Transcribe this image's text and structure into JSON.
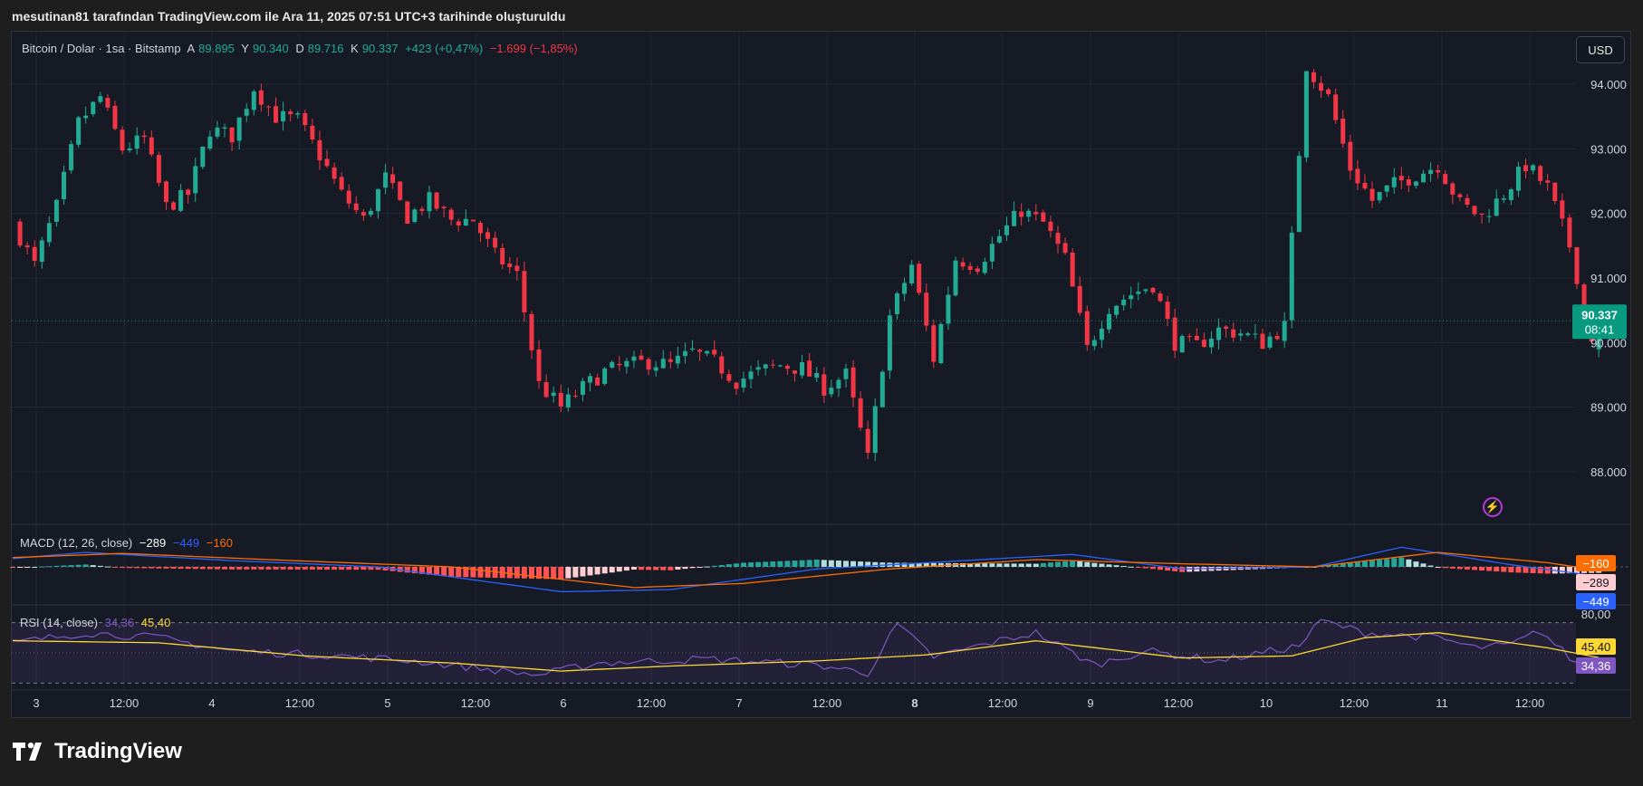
{
  "caption": "mesutinan81 tarafından TradingView.com ile Ara 11, 2025 07:51 UTC+3 tarihinde oluşturuldu",
  "legend": {
    "title": "Bitcoin / Dolar · 1sa · Bitstamp",
    "o_key": "A",
    "o_val": "89.895",
    "h_key": "Y",
    "h_val": "90.340",
    "l_key": "D",
    "l_val": "89.716",
    "c_key": "K",
    "c_val": "90.337",
    "change": "+423 (+0,47%)",
    "change2": "−1.699 (−1,85%)"
  },
  "currency_button": "USD",
  "price_label": {
    "value": "90.337",
    "countdown": "08:41"
  },
  "macd": {
    "label": "MACD (12, 26, close)",
    "hist": "−289",
    "macd": "−449",
    "signal": "−160",
    "tag_signal": "−160",
    "tag_hist": "−289",
    "tag_macd": "−449"
  },
  "rsi": {
    "label": "RSI (14, close)",
    "rsi": "34,36",
    "ma": "45,40",
    "tag_upper": "80,00",
    "tag_ma": "45,40",
    "tag_rsi": "34,36"
  },
  "logo_text": "TradingView",
  "colors": {
    "up": "#22ab94",
    "down": "#f23645",
    "macd": "#2962ff",
    "signal": "#ff6d00",
    "rsi": "#7e57c2",
    "rsi_ma": "#fdd835",
    "label_bg": "#089981"
  },
  "chart_data": {
    "type": "candlestick",
    "title": "Bitcoin / Dolar · 1sa · Bitstamp",
    "x_ticks": [
      "3",
      "12:00",
      "4",
      "12:00",
      "5",
      "12:00",
      "6",
      "12:00",
      "7",
      "12:00",
      "8",
      "12:00",
      "9",
      "12:00",
      "10",
      "12:00",
      "11",
      "12:00"
    ],
    "y_ticks": [
      "94.000",
      "93.000",
      "92.000",
      "91.000",
      "90.000",
      "89.000",
      "88.000"
    ],
    "ylim": [
      87200,
      94800
    ],
    "last_price": 90337,
    "path_points": [
      [
        0,
        91850
      ],
      [
        3,
        91200
      ],
      [
        6,
        92100
      ],
      [
        9,
        93400
      ],
      [
        12,
        93800
      ],
      [
        15,
        93000
      ],
      [
        18,
        93150
      ],
      [
        21,
        92100
      ],
      [
        24,
        92300
      ],
      [
        27,
        93300
      ],
      [
        30,
        93200
      ],
      [
        33,
        93950
      ],
      [
        36,
        93500
      ],
      [
        39,
        93450
      ],
      [
        42,
        92900
      ],
      [
        45,
        92300
      ],
      [
        48,
        91900
      ],
      [
        51,
        92550
      ],
      [
        54,
        91950
      ],
      [
        57,
        92200
      ],
      [
        60,
        91900
      ],
      [
        63,
        91900
      ],
      [
        66,
        91350
      ],
      [
        69,
        91050
      ],
      [
        72,
        89350
      ],
      [
        75,
        89000
      ],
      [
        78,
        89300
      ],
      [
        81,
        89550
      ],
      [
        84,
        89650
      ],
      [
        87,
        89700
      ],
      [
        90,
        89650
      ],
      [
        93,
        89850
      ],
      [
        96,
        89700
      ],
      [
        99,
        89400
      ],
      [
        102,
        89550
      ],
      [
        105,
        89650
      ],
      [
        108,
        89600
      ],
      [
        111,
        89300
      ],
      [
        114,
        89500
      ],
      [
        117,
        88200
      ],
      [
        120,
        90400
      ],
      [
        123,
        91200
      ],
      [
        126,
        89750
      ],
      [
        129,
        91300
      ],
      [
        132,
        91200
      ],
      [
        135,
        91650
      ],
      [
        138,
        92050
      ],
      [
        141,
        91850
      ],
      [
        144,
        91300
      ],
      [
        147,
        89900
      ],
      [
        150,
        90550
      ],
      [
        153,
        90750
      ],
      [
        156,
        90900
      ],
      [
        159,
        90000
      ],
      [
        162,
        89950
      ],
      [
        165,
        90200
      ],
      [
        168,
        90150
      ],
      [
        171,
        90000
      ],
      [
        174,
        90250
      ],
      [
        177,
        94300
      ],
      [
        180,
        93800
      ],
      [
        183,
        92700
      ],
      [
        186,
        92200
      ],
      [
        189,
        92450
      ],
      [
        192,
        92600
      ],
      [
        195,
        92750
      ],
      [
        198,
        92150
      ],
      [
        201,
        91950
      ],
      [
        204,
        92300
      ],
      [
        207,
        92750
      ],
      [
        210,
        92400
      ],
      [
        213,
        91500
      ],
      [
        216,
        90100
      ],
      [
        217,
        90337
      ]
    ],
    "macd": {
      "series": [
        {
          "name": "MACD",
          "path_points": [
            [
              0,
              400
            ],
            [
              10,
              700
            ],
            [
              30,
              300
            ],
            [
              50,
              0
            ],
            [
              75,
              -1200
            ],
            [
              90,
              -1100
            ],
            [
              110,
              -100
            ],
            [
              130,
              300
            ],
            [
              145,
              600
            ],
            [
              160,
              -100
            ],
            [
              178,
              0
            ],
            [
              190,
              950
            ],
            [
              205,
              100
            ],
            [
              217,
              -449
            ]
          ]
        },
        {
          "name": "Signal",
          "path_points": [
            [
              0,
              450
            ],
            [
              15,
              650
            ],
            [
              35,
              350
            ],
            [
              60,
              0
            ],
            [
              85,
              -1000
            ],
            [
              100,
              -800
            ],
            [
              120,
              -100
            ],
            [
              140,
              350
            ],
            [
              160,
              150
            ],
            [
              178,
              0
            ],
            [
              195,
              700
            ],
            [
              210,
              200
            ],
            [
              217,
              -160
            ]
          ]
        }
      ],
      "histogram_last": -289
    },
    "rsi": {
      "upper": 80,
      "lower": 20,
      "ylim": [
        15,
        85
      ],
      "series": [
        {
          "name": "RSI",
          "path_points": [
            [
              0,
              60
            ],
            [
              10,
              70
            ],
            [
              20,
              65
            ],
            [
              30,
              52
            ],
            [
              45,
              47
            ],
            [
              55,
              42
            ],
            [
              72,
              28
            ],
            [
              80,
              40
            ],
            [
              95,
              44
            ],
            [
              110,
              38
            ],
            [
              117,
              30
            ],
            [
              121,
              78
            ],
            [
              126,
              46
            ],
            [
              135,
              62
            ],
            [
              140,
              70
            ],
            [
              148,
              38
            ],
            [
              155,
              52
            ],
            [
              165,
              42
            ],
            [
              176,
              57
            ],
            [
              179,
              82
            ],
            [
              185,
              70
            ],
            [
              195,
              65
            ],
            [
              200,
              55
            ],
            [
              205,
              58
            ],
            [
              209,
              72
            ],
            [
              215,
              32
            ],
            [
              217,
              34.36
            ]
          ]
        },
        {
          "name": "MA",
          "path_points": [
            [
              0,
              62
            ],
            [
              20,
              60
            ],
            [
              40,
              47
            ],
            [
              60,
              40
            ],
            [
              75,
              32
            ],
            [
              90,
              37
            ],
            [
              110,
              42
            ],
            [
              125,
              48
            ],
            [
              140,
              62
            ],
            [
              160,
              45
            ],
            [
              175,
              47
            ],
            [
              185,
              65
            ],
            [
              195,
              70
            ],
            [
              210,
              55
            ],
            [
              217,
              45.4
            ]
          ]
        }
      ]
    }
  }
}
